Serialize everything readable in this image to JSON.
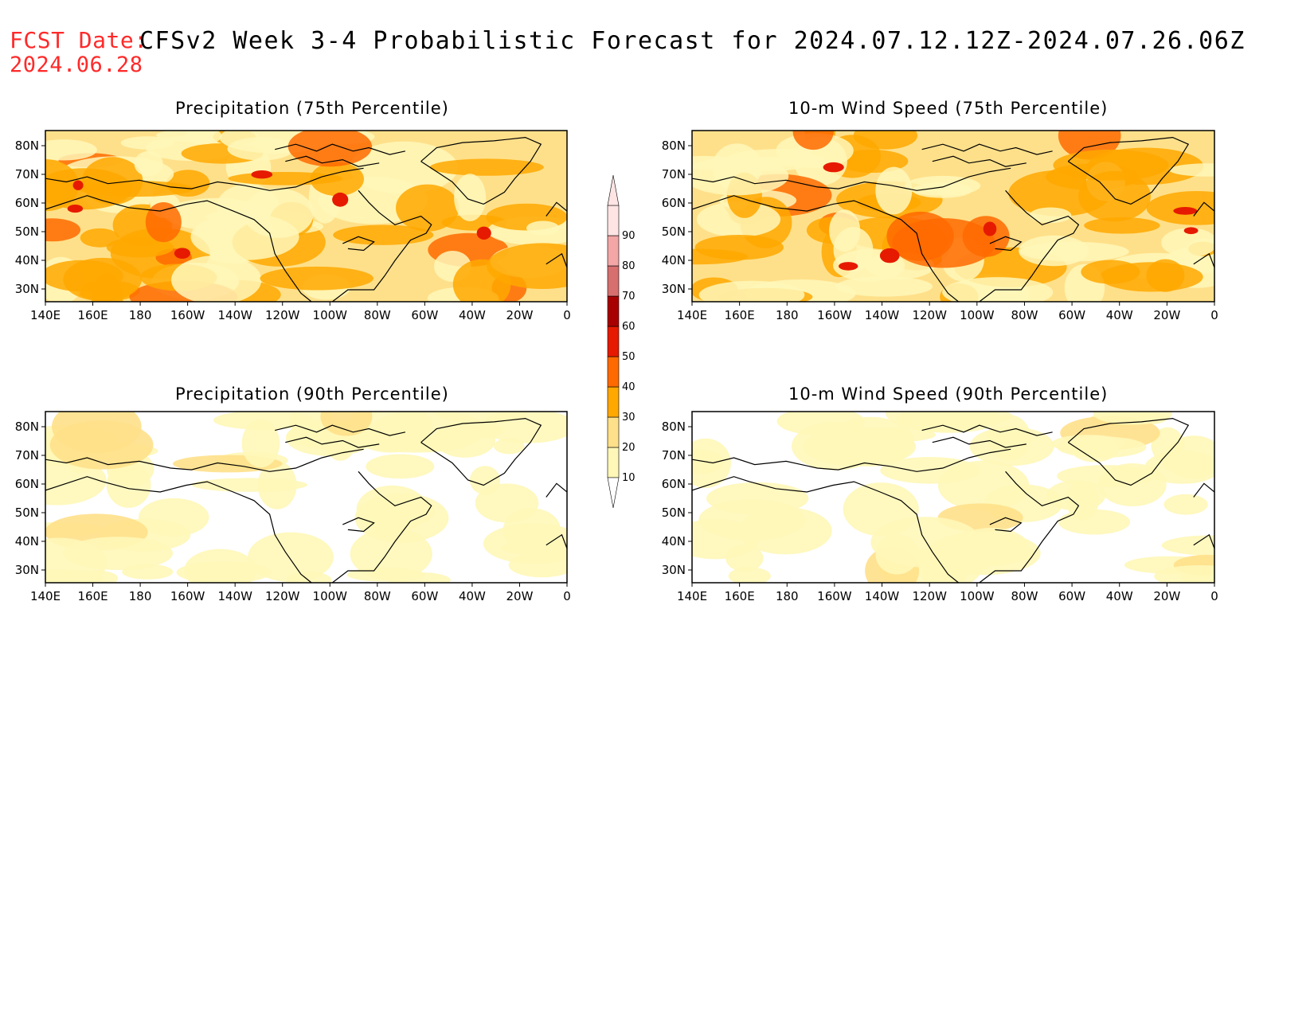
{
  "header": {
    "fcst_label": "FCST Date:",
    "fcst_date": "2024.06.28",
    "title": "CFSv2 Week 3-4 Probabilistic Forecast for 2024.07.12.12Z-2024.07.26.06Z"
  },
  "panels": [
    {
      "id": "p1",
      "title": "Precipitation (75th Percentile)",
      "level": "high"
    },
    {
      "id": "p2",
      "title": "10-m Wind Speed (75th Percentile)",
      "level": "high"
    },
    {
      "id": "p3",
      "title": "Precipitation (90th Percentile)",
      "level": "low"
    },
    {
      "id": "p4",
      "title": "10-m Wind Speed (90th Percentile)",
      "level": "low"
    }
  ],
  "axes": {
    "lon_labels": [
      "140E",
      "160E",
      "180",
      "160W",
      "140W",
      "120W",
      "100W",
      "80W",
      "60W",
      "40W",
      "20W",
      "0"
    ],
    "lat_labels": [
      "80N",
      "70N",
      "60N",
      "50N",
      "40N",
      "30N"
    ]
  },
  "colorbar": {
    "values": [
      "10",
      "20",
      "30",
      "40",
      "50",
      "60",
      "70",
      "80",
      "90"
    ],
    "colors": [
      "#ffffff",
      "#fff7b8",
      "#ffe08a",
      "#ffa800",
      "#ff6a00",
      "#e61a00",
      "#a80000",
      "#d76f6f",
      "#f2a6a6",
      "#ffe4e4"
    ]
  }
}
